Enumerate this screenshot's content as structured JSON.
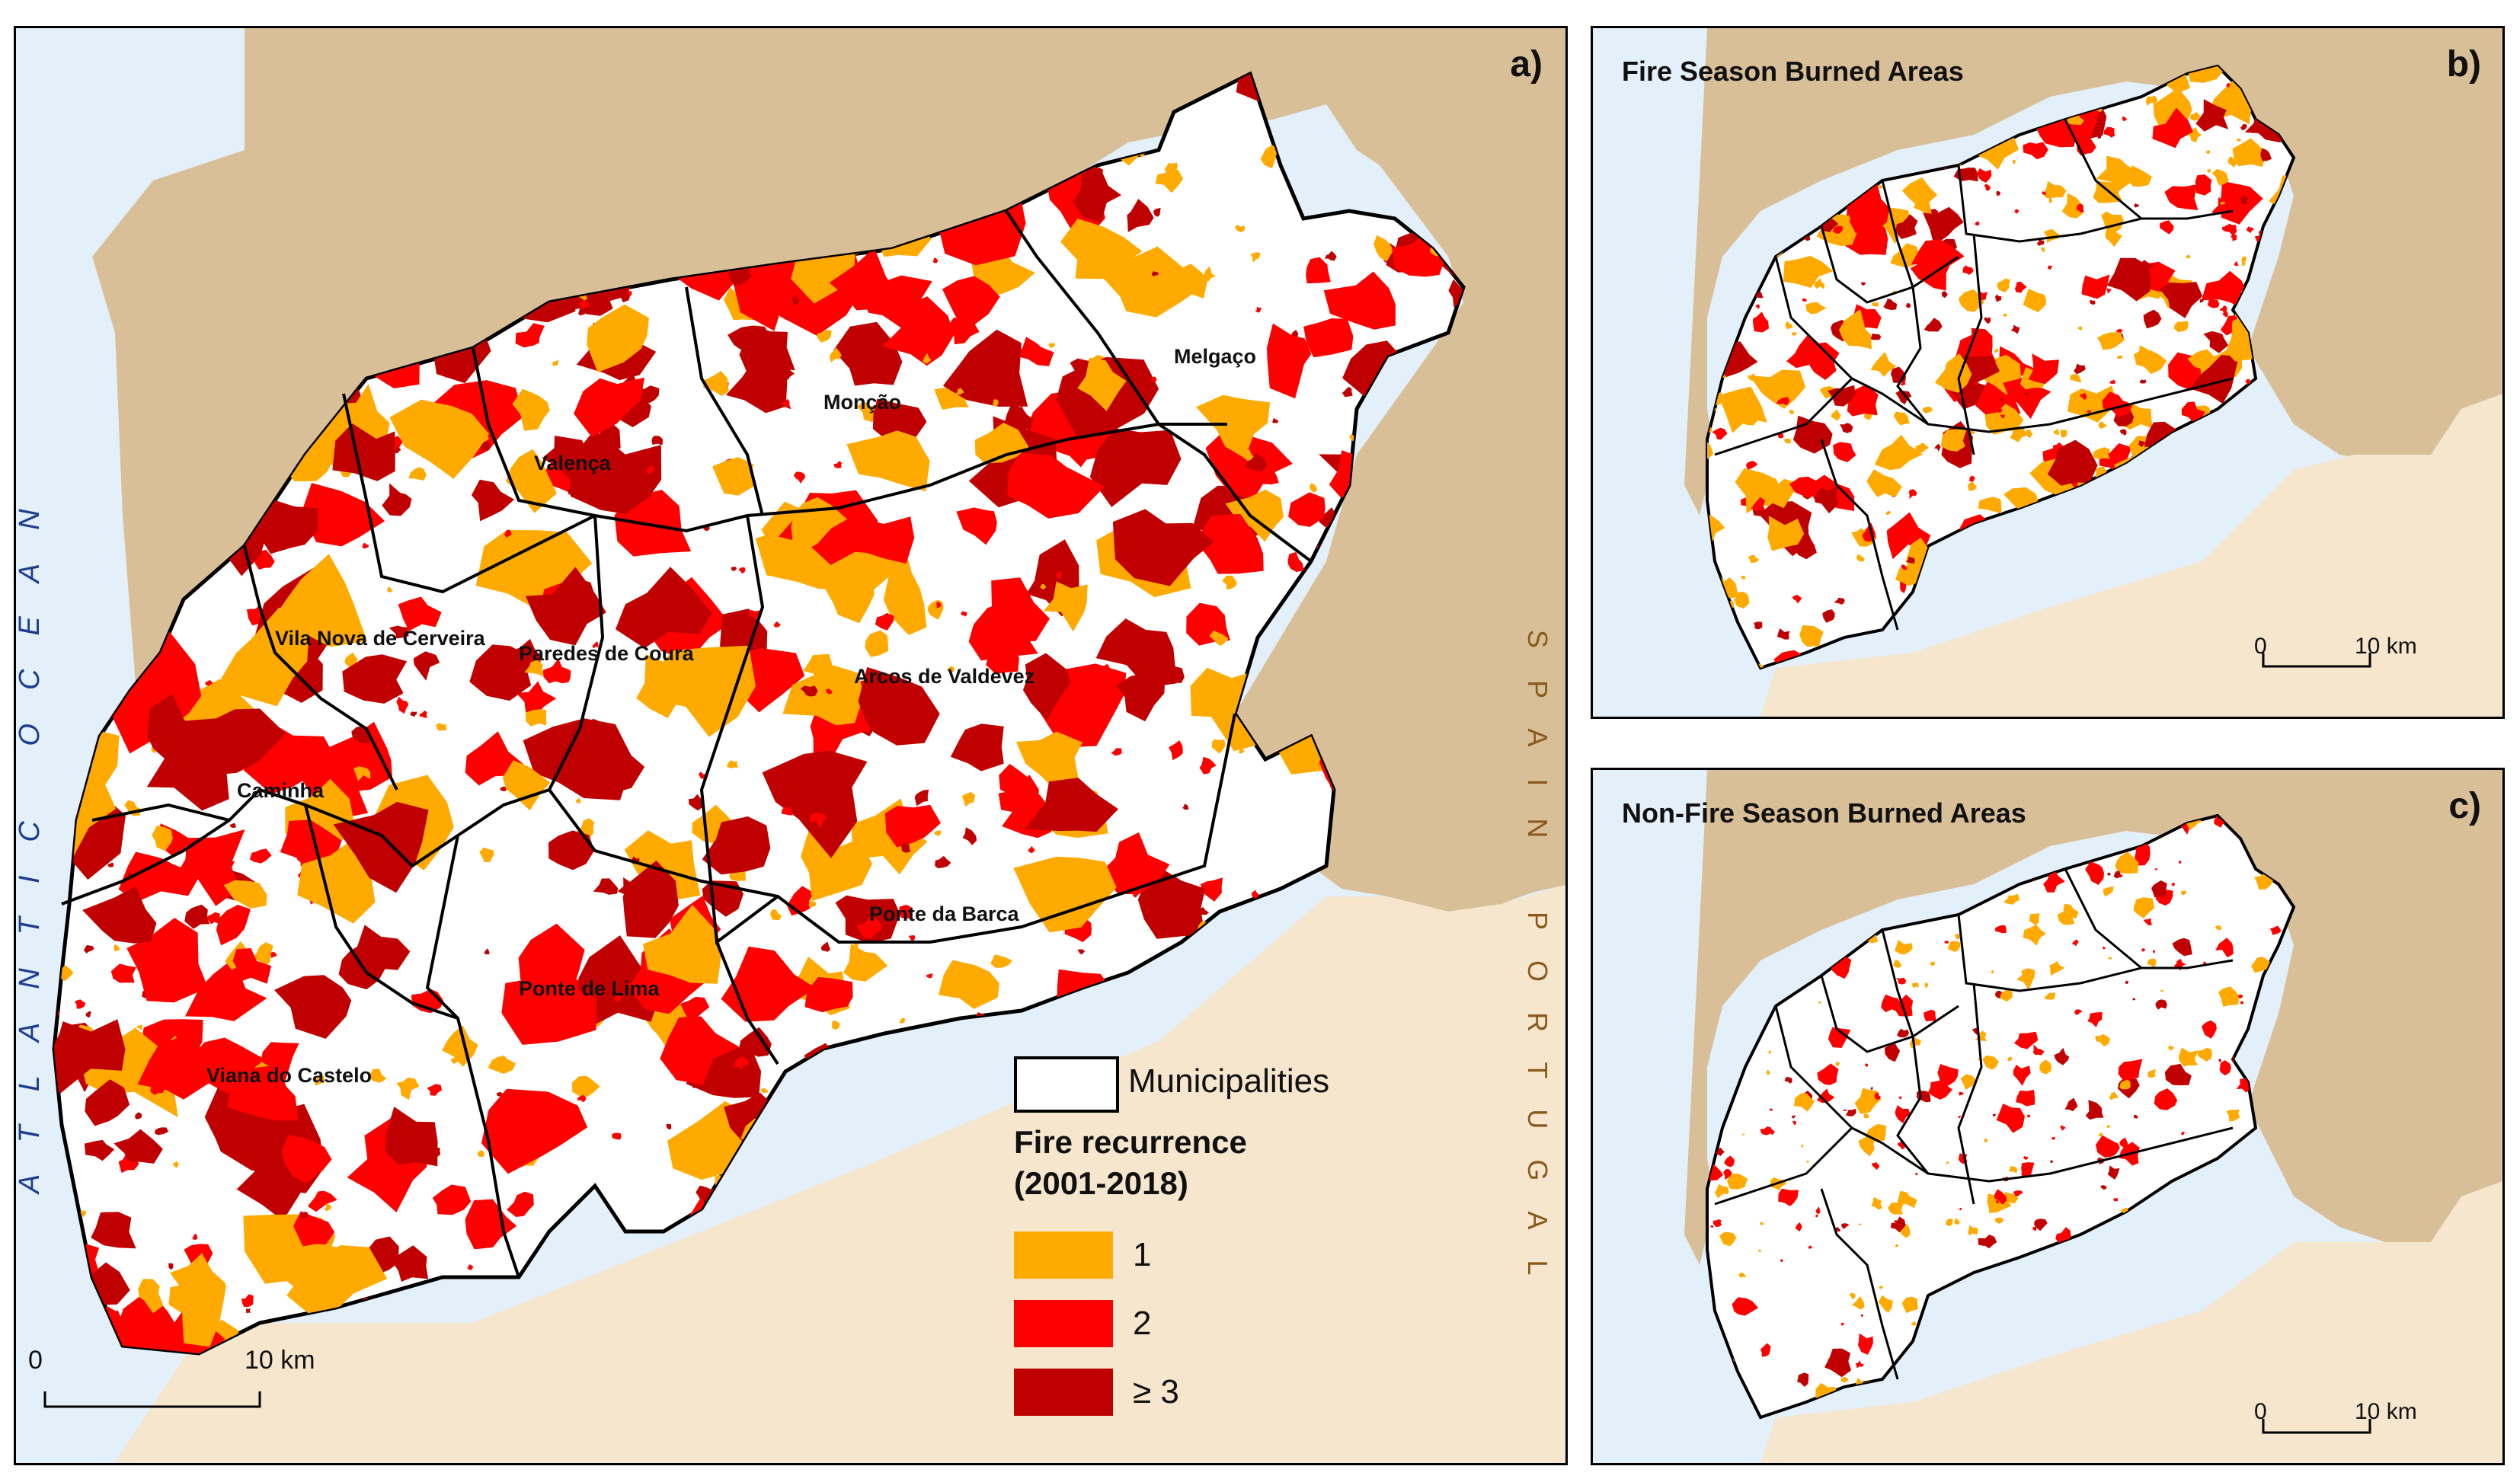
{
  "panels": {
    "a": {
      "label": "a)"
    },
    "b": {
      "label": "b)",
      "title": "Fire Season Burned Areas",
      "scale": {
        "zero": "0",
        "km": "10 km"
      }
    },
    "c": {
      "label": "c)",
      "title": "Non-Fire Season Burned Areas",
      "scale": {
        "zero": "0",
        "km": "10 km"
      }
    }
  },
  "scale_a": {
    "zero": "0",
    "km": "10 km"
  },
  "water_labels": {
    "ocean": "ATLANTIC OCEAN",
    "country1": "SPAIN",
    "country2": "PORTUGAL"
  },
  "municipalities": [
    {
      "name": "Melgaço"
    },
    {
      "name": "Monção"
    },
    {
      "name": "Valença"
    },
    {
      "name": "Vila Nova de Cerveira"
    },
    {
      "name": "Paredes de Coura"
    },
    {
      "name": "Arcos de Valdevez"
    },
    {
      "name": "Caminha"
    },
    {
      "name": "Ponte da Barca"
    },
    {
      "name": "Ponte de Lima"
    },
    {
      "name": "Viana do Castelo"
    }
  ],
  "legend": {
    "boundary_label": "Municipalities",
    "title_line1": "Fire recurrence",
    "title_line2": "(2001-2018)",
    "classes": [
      {
        "label": "1",
        "color": "#ffaa00"
      },
      {
        "label": "2",
        "color": "#ff0000"
      },
      {
        "label": "≥ 3",
        "color": "#c00000"
      }
    ]
  },
  "colors": {
    "ocean": "#e3f0fa",
    "spain": "#d9bf97",
    "portugal": "#f5e6cd",
    "region": "#ffffff"
  }
}
